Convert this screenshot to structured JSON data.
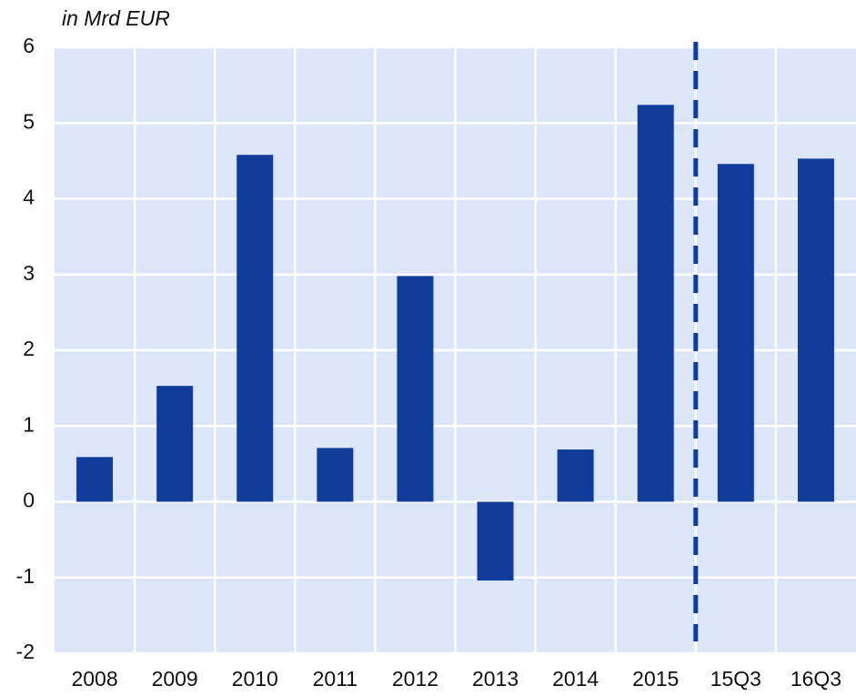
{
  "chart_data": {
    "type": "bar",
    "title": "in Mrd EUR",
    "categories": [
      "2008",
      "2009",
      "2010",
      "2011",
      "2012",
      "2013",
      "2014",
      "2015",
      "15Q3",
      "16Q3"
    ],
    "values": [
      0.59,
      1.53,
      4.58,
      0.71,
      2.98,
      -1.04,
      0.69,
      5.24,
      4.46,
      4.53
    ],
    "color": "#123c9c",
    "ylim": [
      -2,
      6
    ],
    "yticks": [
      -2,
      -1,
      0,
      1,
      2,
      3,
      4,
      5,
      6
    ],
    "grid": true
  }
}
